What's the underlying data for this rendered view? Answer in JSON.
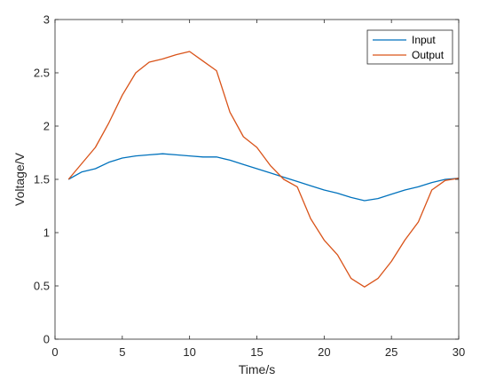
{
  "chart_data": {
    "type": "line",
    "xlabel": "Time/s",
    "ylabel": "Voltage/V",
    "xlim": [
      0,
      30
    ],
    "ylim": [
      0,
      3
    ],
    "xticks": [
      0,
      5,
      10,
      15,
      20,
      25,
      30
    ],
    "yticks": [
      0,
      0.5,
      1,
      1.5,
      2,
      2.5,
      3
    ],
    "xtick_labels": [
      "0",
      "5",
      "10",
      "15",
      "20",
      "25",
      "30"
    ],
    "ytick_labels": [
      "0",
      "0.5",
      "1",
      "1.5",
      "2",
      "2.5",
      "3"
    ],
    "grid": false,
    "legend_position": "top-right",
    "x": [
      1,
      2,
      3,
      4,
      5,
      6,
      7,
      8,
      9,
      10,
      11,
      12,
      13,
      14,
      15,
      16,
      17,
      18,
      19,
      20,
      21,
      22,
      23,
      24,
      25,
      26,
      27,
      28,
      29,
      30
    ],
    "series": [
      {
        "name": "Input",
        "color": "#0072BD",
        "values": [
          1.5,
          1.57,
          1.6,
          1.66,
          1.7,
          1.72,
          1.73,
          1.74,
          1.73,
          1.72,
          1.71,
          1.71,
          1.68,
          1.64,
          1.6,
          1.56,
          1.52,
          1.48,
          1.44,
          1.4,
          1.37,
          1.33,
          1.3,
          1.32,
          1.36,
          1.4,
          1.43,
          1.47,
          1.5,
          1.51
        ]
      },
      {
        "name": "Output",
        "color": "#D95319",
        "values": [
          1.5,
          1.65,
          1.8,
          2.03,
          2.29,
          2.5,
          2.6,
          2.63,
          2.67,
          2.7,
          2.61,
          2.52,
          2.13,
          1.9,
          1.8,
          1.63,
          1.5,
          1.43,
          1.13,
          0.93,
          0.79,
          0.57,
          0.49,
          0.57,
          0.73,
          0.93,
          1.1,
          1.4,
          1.49,
          1.51
        ]
      }
    ]
  }
}
